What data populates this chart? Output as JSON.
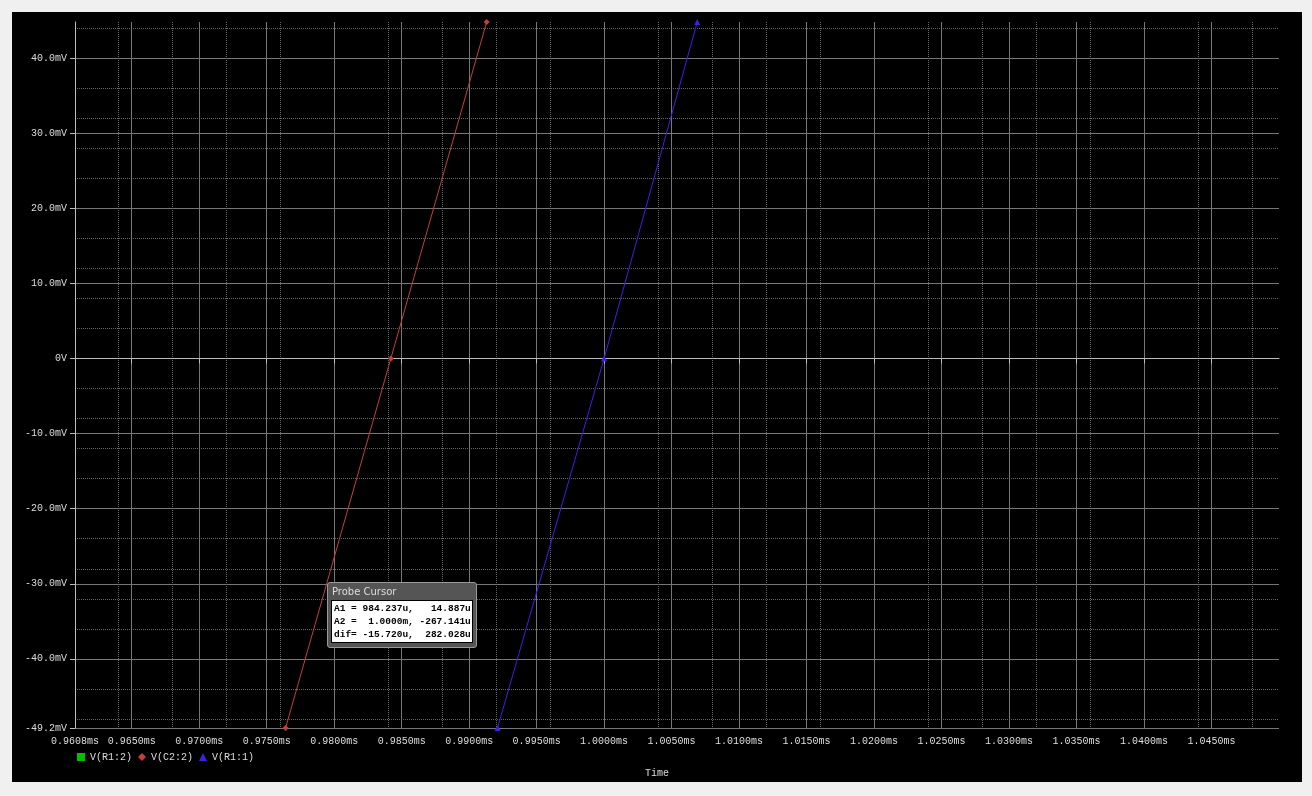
{
  "chart_data": {
    "type": "line",
    "xlabel": "Time",
    "xlim": [
      0.9608,
      1.05
    ],
    "xticks": [
      {
        "value": 0.9608,
        "label": "0.9608ms"
      },
      {
        "value": 0.965,
        "label": "0.9650ms"
      },
      {
        "value": 0.97,
        "label": "0.9700ms"
      },
      {
        "value": 0.975,
        "label": "0.9750ms"
      },
      {
        "value": 0.98,
        "label": "0.9800ms"
      },
      {
        "value": 0.985,
        "label": "0.9850ms"
      },
      {
        "value": 0.99,
        "label": "0.9900ms"
      },
      {
        "value": 0.995,
        "label": "0.9950ms"
      },
      {
        "value": 1.0,
        "label": "1.0000ms"
      },
      {
        "value": 1.005,
        "label": "1.0050ms"
      },
      {
        "value": 1.01,
        "label": "1.0100ms"
      },
      {
        "value": 1.015,
        "label": "1.0150ms"
      },
      {
        "value": 1.02,
        "label": "1.0200ms"
      },
      {
        "value": 1.025,
        "label": "1.0250ms"
      },
      {
        "value": 1.03,
        "label": "1.0300ms"
      },
      {
        "value": 1.035,
        "label": "1.0350ms"
      },
      {
        "value": 1.04,
        "label": "1.0400ms"
      },
      {
        "value": 1.045,
        "label": "1.0450ms"
      }
    ],
    "ylim": [
      -49.2,
      44.8
    ],
    "yticks": [
      {
        "value": -49.2,
        "label": "-49.2mV"
      },
      {
        "value": -40,
        "label": "-40.0mV"
      },
      {
        "value": -30,
        "label": "-30.0mV"
      },
      {
        "value": -20,
        "label": "-20.0mV"
      },
      {
        "value": -10,
        "label": "-10.0mV"
      },
      {
        "value": 0,
        "label": "0V"
      },
      {
        "value": 10,
        "label": "10.0mV"
      },
      {
        "value": 20,
        "label": "20.0mV"
      },
      {
        "value": 30,
        "label": "30.0mV"
      },
      {
        "value": 40,
        "label": "40.0mV"
      }
    ],
    "grid": true,
    "legend": "bottom left",
    "line_style": "solid",
    "series": [
      {
        "name": "V(R1:2)",
        "color": "#00c000",
        "marker": "square"
      },
      {
        "name": "V(C2:2)",
        "color": "#c04040",
        "marker": "diamond",
        "x": [
          0.9764,
          0.9842,
          0.9913
        ],
        "values": [
          -49.2,
          0,
          44.8
        ]
      },
      {
        "name": "V(R1:1)",
        "color": "#4020e0",
        "marker": "triangle",
        "x": [
          0.9921,
          1.0,
          1.0069
        ],
        "values": [
          -49.2,
          0,
          44.8
        ]
      }
    ],
    "annotations": [
      "Probe Cursor",
      "A1 = 984.237u,   14.887u",
      "A2 =  1.0000m, -267.141u",
      "dif= -15.720u,  282.028u"
    ]
  }
}
